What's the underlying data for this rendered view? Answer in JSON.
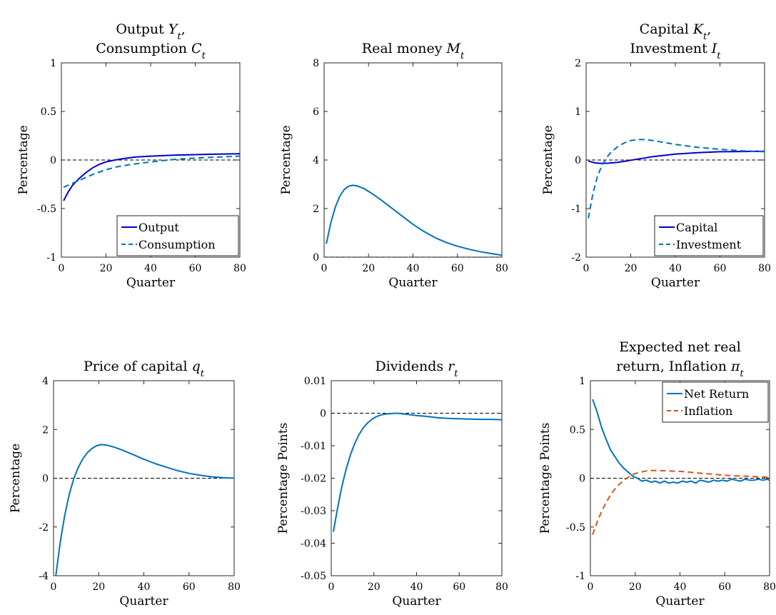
{
  "figure": {
    "chart_data": [
      {
        "type": "line",
        "title_lines": [
          "Output Y_t,",
          "Consumption C_t"
        ],
        "xlabel": "Quarter",
        "ylabel": "Percentage",
        "xlim": [
          0,
          80
        ],
        "ylim": [
          -1,
          1
        ],
        "xticks": [
          0,
          20,
          40,
          60,
          80
        ],
        "yticks": [
          -1,
          -0.5,
          0,
          0.5,
          1
        ],
        "ytick_labels": [
          "-1",
          "-0.5",
          "0",
          "0.5",
          "1"
        ],
        "zero_line": true,
        "legend": {
          "position": "bottom-right",
          "entries": [
            "Output",
            "Consumption"
          ]
        },
        "series": [
          {
            "name": "Output",
            "color": "#0000CC",
            "dash": "solid",
            "x": [
              1,
              3,
              5,
              8,
              11,
              14,
              17,
              20,
              24,
              28,
              33,
              40,
              50,
              60,
              70,
              80
            ],
            "y": [
              -0.42,
              -0.33,
              -0.26,
              -0.19,
              -0.13,
              -0.08,
              -0.045,
              -0.02,
              0.0,
              0.015,
              0.03,
              0.04,
              0.05,
              0.055,
              0.06,
              0.065
            ]
          },
          {
            "name": "Consumption",
            "color": "#0072BD",
            "dash": "dashed",
            "x": [
              1,
              5,
              10,
              15,
              20,
              25,
              30,
              40,
              50,
              60,
              70,
              80
            ],
            "y": [
              -0.28,
              -0.24,
              -0.19,
              -0.14,
              -0.1,
              -0.07,
              -0.05,
              -0.02,
              0.005,
              0.02,
              0.03,
              0.04
            ]
          }
        ]
      },
      {
        "type": "line",
        "title_lines": [
          "Real money M_t"
        ],
        "xlabel": "Quarter",
        "ylabel": "Percentage",
        "xlim": [
          0,
          80
        ],
        "ylim": [
          0,
          8
        ],
        "xticks": [
          0,
          20,
          40,
          60,
          80
        ],
        "yticks": [
          0,
          2,
          4,
          6,
          8
        ],
        "ytick_labels": [
          "0",
          "2",
          "4",
          "6",
          "8"
        ],
        "zero_line": true,
        "series": [
          {
            "color": "#0072BD",
            "dash": "solid",
            "x": [
              1,
              3,
              5,
              7,
              9,
              11,
              13,
              15,
              18,
              21,
              25,
              30,
              35,
              40,
              45,
              50,
              55,
              60,
              65,
              70,
              75,
              80
            ],
            "y": [
              0.55,
              1.4,
              2.05,
              2.5,
              2.78,
              2.92,
              2.96,
              2.93,
              2.82,
              2.65,
              2.4,
              2.05,
              1.7,
              1.35,
              1.05,
              0.8,
              0.6,
              0.45,
              0.33,
              0.23,
              0.15,
              0.08
            ]
          }
        ]
      },
      {
        "type": "line",
        "title_lines": [
          "Capital K_t,",
          "Investment I_t"
        ],
        "xlabel": "Quarter",
        "ylabel": "Percentage",
        "xlim": [
          0,
          80
        ],
        "ylim": [
          -2,
          2
        ],
        "xticks": [
          0,
          20,
          40,
          60,
          80
        ],
        "yticks": [
          -2,
          -1,
          0,
          1,
          2
        ],
        "ytick_labels": [
          "-2",
          "-1",
          "0",
          "1",
          "2"
        ],
        "zero_line": true,
        "legend": {
          "position": "bottom-right",
          "entries": [
            "Capital",
            "Investment"
          ]
        },
        "series": [
          {
            "name": "Capital",
            "color": "#0000CC",
            "dash": "solid",
            "x": [
              1,
              4,
              7,
              10,
              14,
              18,
              22,
              26,
              30,
              40,
              50,
              60,
              70,
              80
            ],
            "y": [
              -0.02,
              -0.06,
              -0.07,
              -0.065,
              -0.05,
              -0.02,
              0.01,
              0.04,
              0.07,
              0.12,
              0.15,
              0.17,
              0.175,
              0.18
            ]
          },
          {
            "name": "Investment",
            "color": "#0072BD",
            "dash": "dashed",
            "x": [
              1,
              3,
              5,
              7,
              9,
              11,
              14,
              17,
              20,
              23,
              26,
              30,
              35,
              40,
              50,
              60,
              70,
              80
            ],
            "y": [
              -1.2,
              -0.7,
              -0.35,
              -0.12,
              0.04,
              0.15,
              0.27,
              0.35,
              0.4,
              0.42,
              0.42,
              0.4,
              0.36,
              0.32,
              0.26,
              0.22,
              0.19,
              0.17
            ]
          }
        ]
      },
      {
        "type": "line",
        "title_lines": [
          "Price of capital q_t"
        ],
        "xlabel": "Quarter",
        "ylabel": "Percentage",
        "xlim": [
          0,
          80
        ],
        "ylim": [
          -4,
          4
        ],
        "xticks": [
          0,
          20,
          40,
          60,
          80
        ],
        "yticks": [
          -4,
          -2,
          0,
          2,
          4
        ],
        "ytick_labels": [
          "-4",
          "-2",
          "0",
          "2",
          "4"
        ],
        "zero_line": true,
        "series": [
          {
            "color": "#0072BD",
            "dash": "solid",
            "x": [
              1,
              3,
              5,
              7,
              9,
              11,
              13,
              15,
              17,
              19,
              21,
              24,
              27,
              30,
              35,
              40,
              45,
              50,
              55,
              60,
              65,
              70,
              75,
              80
            ],
            "y": [
              -4.0,
              -2.6,
              -1.5,
              -0.65,
              0.0,
              0.45,
              0.8,
              1.05,
              1.22,
              1.33,
              1.38,
              1.35,
              1.27,
              1.17,
              0.98,
              0.78,
              0.6,
              0.45,
              0.31,
              0.2,
              0.12,
              0.06,
              0.02,
              0.0
            ]
          }
        ]
      },
      {
        "type": "line",
        "title_lines": [
          "Dividends r_t"
        ],
        "xlabel": "Quarter",
        "ylabel": "Percentage Points",
        "xlim": [
          0,
          80
        ],
        "ylim": [
          -0.05,
          0.01
        ],
        "xticks": [
          0,
          20,
          40,
          60,
          80
        ],
        "yticks": [
          -0.05,
          -0.04,
          -0.03,
          -0.02,
          -0.01,
          0,
          0.01
        ],
        "ytick_labels": [
          "-0.05",
          "-0.04",
          "-0.03",
          "-0.02",
          "-0.01",
          "0",
          "0.01"
        ],
        "zero_line": true,
        "series": [
          {
            "color": "#0072BD",
            "dash": "solid",
            "x": [
              1,
              3,
              5,
              7,
              9,
              11,
              13,
              15,
              17,
              19,
              21,
              23,
              25,
              28,
              31,
              35,
              40,
              45,
              50,
              55,
              60,
              65,
              70,
              75,
              80
            ],
            "y": [
              -0.0365,
              -0.029,
              -0.0225,
              -0.0172,
              -0.0128,
              -0.0093,
              -0.0066,
              -0.0045,
              -0.003,
              -0.0019,
              -0.0011,
              -0.0006,
              -0.0003,
              -0.0001,
              0.0,
              -0.0003,
              -0.0007,
              -0.001,
              -0.0014,
              -0.0016,
              -0.0017,
              -0.0018,
              -0.0019,
              -0.0019,
              -0.002
            ]
          }
        ]
      },
      {
        "type": "line",
        "title_lines": [
          "Expected net real",
          "return, Inflation π_t"
        ],
        "xlabel": "Quarter",
        "ylabel": "Percentage Points",
        "xlim": [
          0,
          80
        ],
        "ylim": [
          -1,
          1
        ],
        "xticks": [
          0,
          20,
          40,
          60,
          80
        ],
        "yticks": [
          -1,
          -0.5,
          0,
          0.5,
          1
        ],
        "ytick_labels": [
          "-1",
          "-0.5",
          "0",
          "0.5",
          "1"
        ],
        "zero_line": true,
        "legend": {
          "position": "top-right",
          "entries": [
            "Net Return",
            "Inflation"
          ]
        },
        "series": [
          {
            "name": "Net Return",
            "color": "#0072BD",
            "dash": "solid",
            "x": [
              1,
              3,
              5,
              7,
              9,
              11,
              13,
              15,
              17,
              19,
              21,
              23,
              25,
              27,
              29,
              31,
              33,
              35,
              37,
              39,
              41,
              43,
              45,
              47,
              49,
              51,
              53,
              55,
              57,
              59,
              61,
              63,
              65,
              67,
              69,
              71,
              73,
              75,
              77,
              79,
              80
            ],
            "y": [
              0.81,
              0.68,
              0.52,
              0.4,
              0.29,
              0.22,
              0.15,
              0.1,
              0.06,
              0.02,
              0.0,
              -0.03,
              -0.02,
              -0.04,
              -0.03,
              -0.05,
              -0.03,
              -0.05,
              -0.04,
              -0.05,
              -0.03,
              -0.04,
              -0.03,
              -0.05,
              -0.02,
              -0.03,
              -0.04,
              -0.02,
              -0.03,
              -0.02,
              -0.03,
              -0.01,
              -0.02,
              -0.03,
              -0.01,
              -0.02,
              -0.02,
              -0.01,
              -0.02,
              -0.01,
              -0.02
            ]
          },
          {
            "name": "Inflation",
            "color": "#D95319",
            "dash": "dashed",
            "x": [
              1,
              3,
              5,
              7,
              9,
              11,
              13,
              15,
              17,
              19,
              22,
              25,
              28,
              31,
              35,
              40,
              45,
              50,
              55,
              60,
              65,
              70,
              75,
              80
            ],
            "y": [
              -0.58,
              -0.45,
              -0.34,
              -0.25,
              -0.17,
              -0.11,
              -0.06,
              -0.02,
              0.01,
              0.04,
              0.06,
              0.075,
              0.08,
              0.078,
              0.075,
              0.07,
              0.06,
              0.05,
              0.04,
              0.03,
              0.025,
              0.02,
              0.015,
              0.01
            ]
          }
        ]
      }
    ]
  }
}
